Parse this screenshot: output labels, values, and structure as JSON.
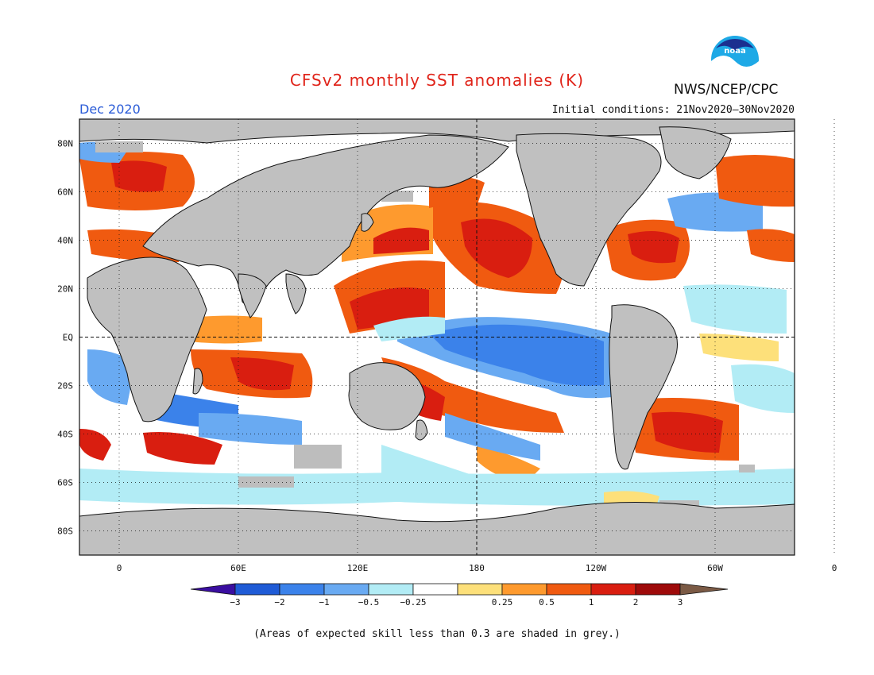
{
  "title": "CFSv2 monthly SST anomalies (K)",
  "agency": "NWS/NCEP/CPC",
  "valid_month": "Dec 2020",
  "initial_conditions": "Initial conditions: 21Nov2020–30Nov2020",
  "footnote": "(Areas of expected skill less than 0.3 are shaded in grey.)",
  "logo": {
    "text": "NOAA",
    "icon": "noaa-logo"
  },
  "colors": {
    "land": "#c0c0c0",
    "skill_mask": "#bdbdbd",
    "scale": [
      "#3a0ea0",
      "#1f5bd6",
      "#3b82ea",
      "#69aaf2",
      "#b2ecf5",
      "#ffffff",
      "#fde07a",
      "#fe9a2e",
      "#f05a10",
      "#d91e10",
      "#9e0a0a",
      "#7b5a45"
    ]
  },
  "map": {
    "lat_labels": [
      "80N",
      "60N",
      "40N",
      "20N",
      "EQ",
      "20S",
      "40S",
      "60S",
      "80S"
    ],
    "lon_labels": [
      "0",
      "60E",
      "120E",
      "180",
      "120W",
      "60W",
      "0"
    ],
    "colorbar_labels": [
      "−3",
      "−2",
      "−1",
      "−0.5",
      "−0.25",
      "0.25",
      "0.5",
      "1",
      "2",
      "3"
    ]
  }
}
